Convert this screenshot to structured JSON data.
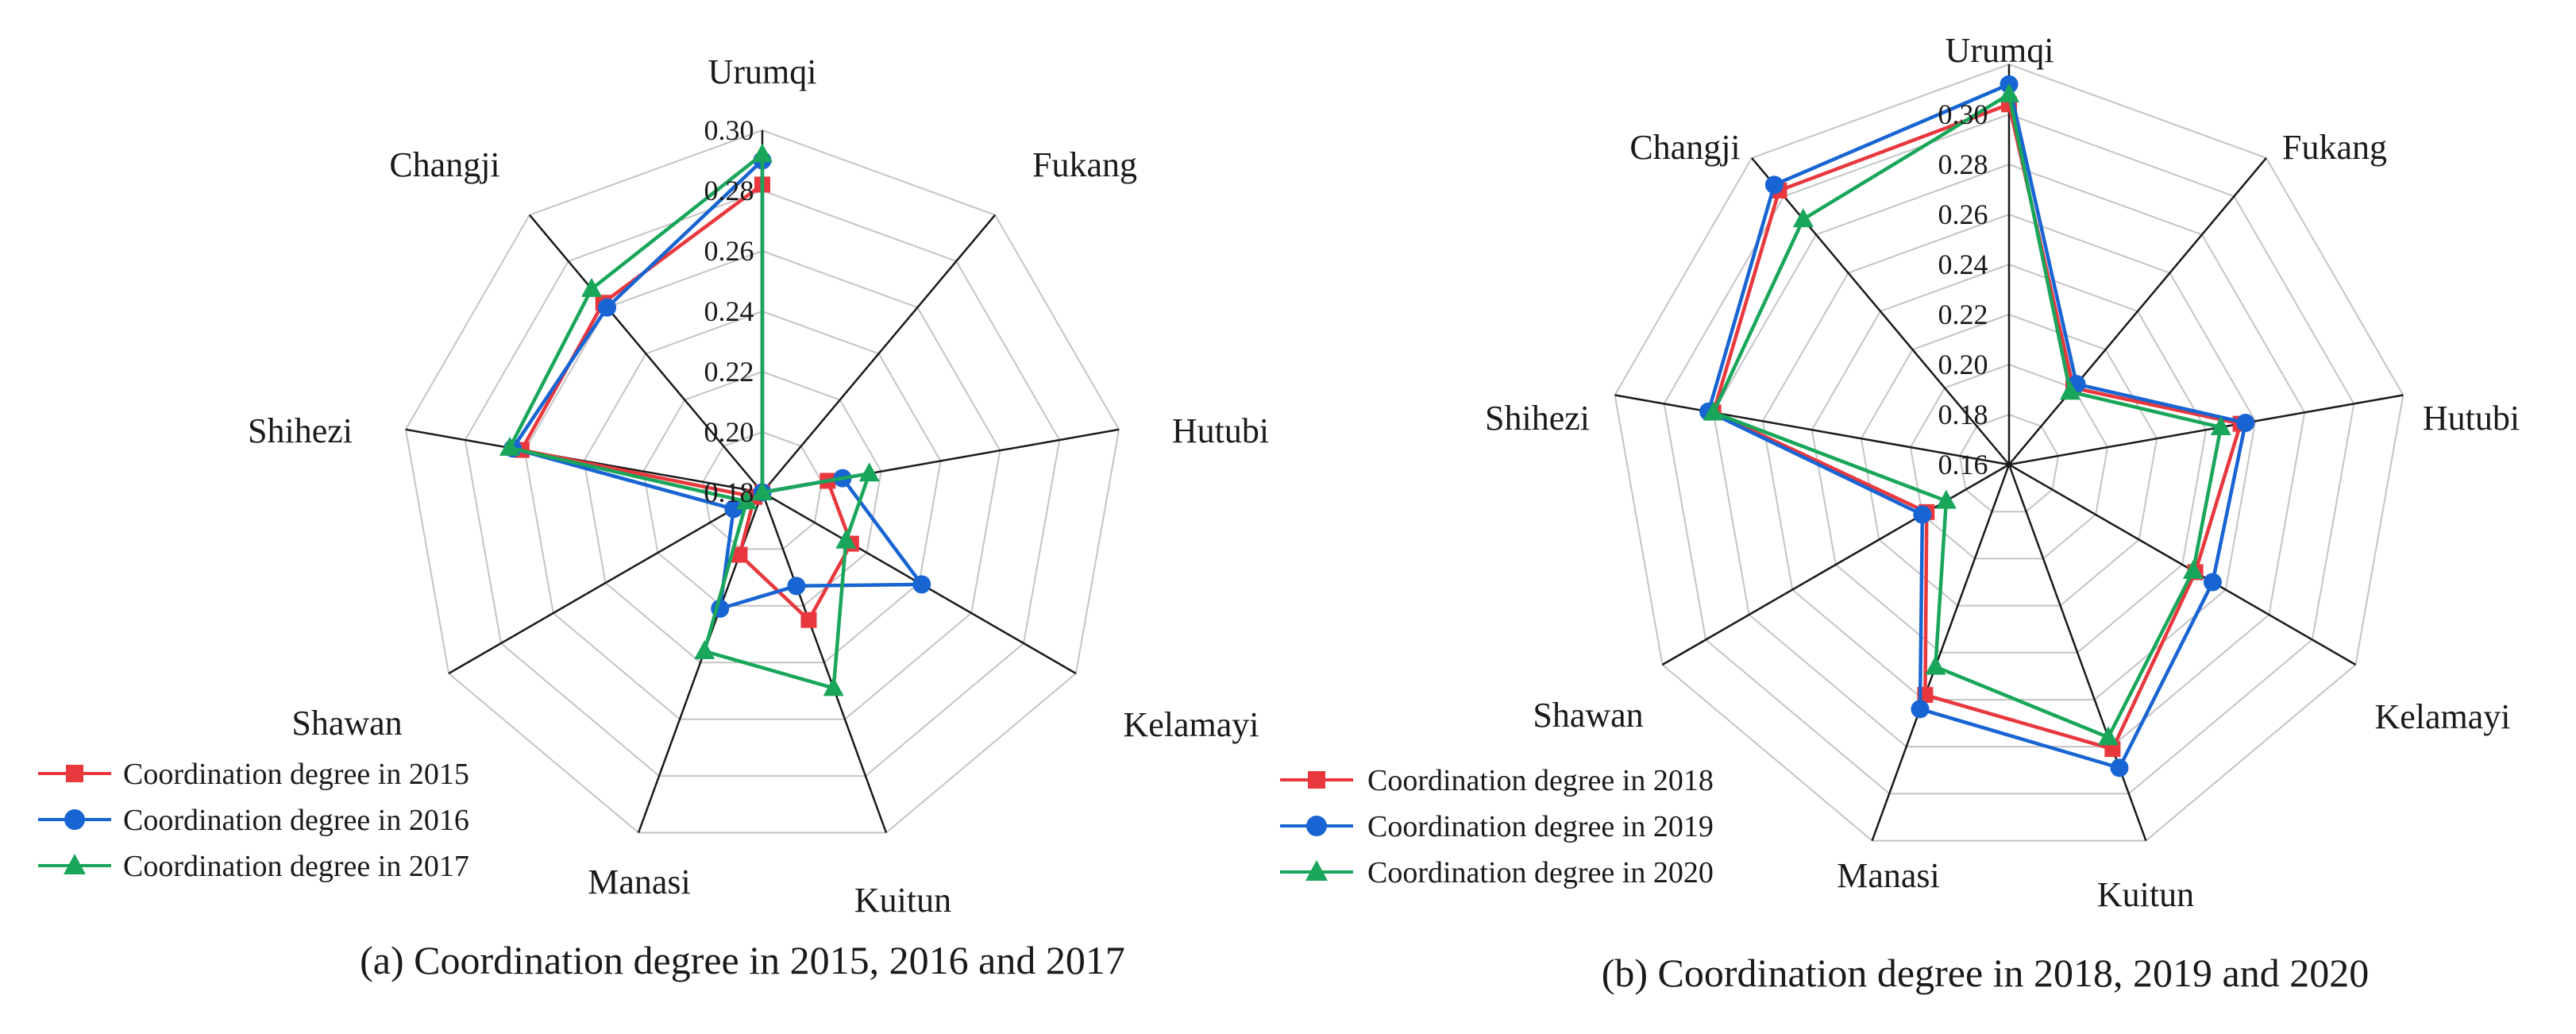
{
  "chart_data": [
    {
      "type": "radar",
      "caption": "(a) Coordination degree in 2015, 2016 and 2017",
      "axes": [
        "Urumqi",
        "Fukang",
        "Hutubi",
        "Kelamayi",
        "Kuitun",
        "Manasi",
        "Shawan",
        "Shihezi",
        "Changji"
      ],
      "rlim": [
        0.18,
        0.3
      ],
      "ticks": [
        0.18,
        0.2,
        0.22,
        0.24,
        0.26,
        0.28,
        0.3
      ],
      "tick_labels": [
        "0.18",
        "0.20",
        "0.22",
        "0.24",
        "0.26",
        "0.28",
        "0.30"
      ],
      "legend_position": "bottom-left",
      "series": [
        {
          "name": "Coordination degree in 2015",
          "color": "#e8383d",
          "marker": "square",
          "values": [
            0.282,
            0.18,
            0.202,
            0.214,
            0.225,
            0.202,
            0.183,
            0.261,
            0.262
          ]
        },
        {
          "name": "Coordination degree in 2016",
          "color": "#1764d2",
          "marker": "circle",
          "values": [
            0.29,
            0.18,
            0.207,
            0.241,
            0.213,
            0.221,
            0.191,
            0.264,
            0.26
          ]
        },
        {
          "name": "Coordination degree in 2017",
          "color": "#19a65a",
          "marker": "triangle",
          "values": [
            0.292,
            0.18,
            0.216,
            0.212,
            0.249,
            0.236,
            0.186,
            0.265,
            0.268
          ]
        }
      ]
    },
    {
      "type": "radar",
      "caption": "(b) Coordination degree in 2018, 2019 and 2020",
      "axes": [
        "Urumqi",
        "Fukang",
        "Hutubi",
        "Kelamayi",
        "Kuitun",
        "Manasi",
        "Shawan",
        "Shihezi",
        "Changji"
      ],
      "rlim": [
        0.14,
        0.3
      ],
      "ticks": [
        0.16,
        0.18,
        0.2,
        0.22,
        0.24,
        0.26,
        0.28,
        0.3
      ],
      "tick_labels": [
        "0.16",
        "0.18",
        "0.20",
        "0.22",
        "0.24",
        "0.26",
        "0.28",
        "0.30"
      ],
      "legend_position": "bottom-left",
      "series": [
        {
          "name": "Coordination degree in 2018",
          "color": "#e8383d",
          "marker": "square",
          "values": [
            0.284,
            0.18,
            0.234,
            0.226,
            0.261,
            0.238,
            0.178,
            0.26,
            0.283
          ]
        },
        {
          "name": "Coordination degree in 2019",
          "color": "#1764d2",
          "marker": "circle",
          "values": [
            0.292,
            0.182,
            0.236,
            0.234,
            0.269,
            0.244,
            0.18,
            0.262,
            0.286
          ]
        },
        {
          "name": "Coordination degree in 2020",
          "color": "#19a65a",
          "marker": "triangle",
          "values": [
            0.288,
            0.178,
            0.226,
            0.225,
            0.256,
            0.226,
            0.169,
            0.26,
            0.268
          ]
        }
      ]
    }
  ]
}
